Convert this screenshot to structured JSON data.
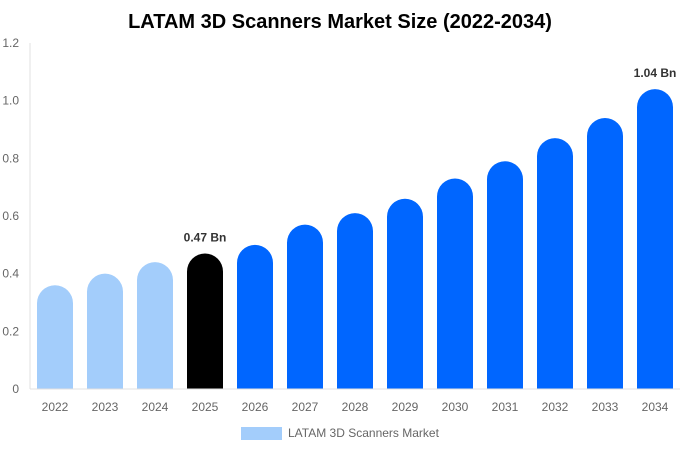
{
  "chart_data": {
    "type": "bar",
    "title": "LATAM 3D Scanners Market Size (2022-2034)",
    "categories": [
      "2022",
      "2023",
      "2024",
      "2025",
      "2026",
      "2027",
      "2028",
      "2029",
      "2030",
      "2031",
      "2032",
      "2033",
      "2034"
    ],
    "series": [
      {
        "name": "LATAM 3D Scanners Market",
        "values": [
          0.36,
          0.4,
          0.44,
          0.47,
          0.5,
          0.57,
          0.61,
          0.66,
          0.73,
          0.79,
          0.87,
          0.94,
          1.04
        ]
      }
    ],
    "data_labels": {
      "3": "0.47 Bn",
      "12": "1.04 Bn"
    },
    "ylim": [
      0,
      1.2
    ],
    "yticks": [
      "0",
      "0.2",
      "0.4",
      "0.6",
      "0.8",
      "1.0",
      "1.2"
    ],
    "grid": false,
    "legend_placement": "bottom",
    "colors": {
      "historical": "#a3cdfb",
      "current": "#000000",
      "forecast": "#0066ff"
    }
  }
}
